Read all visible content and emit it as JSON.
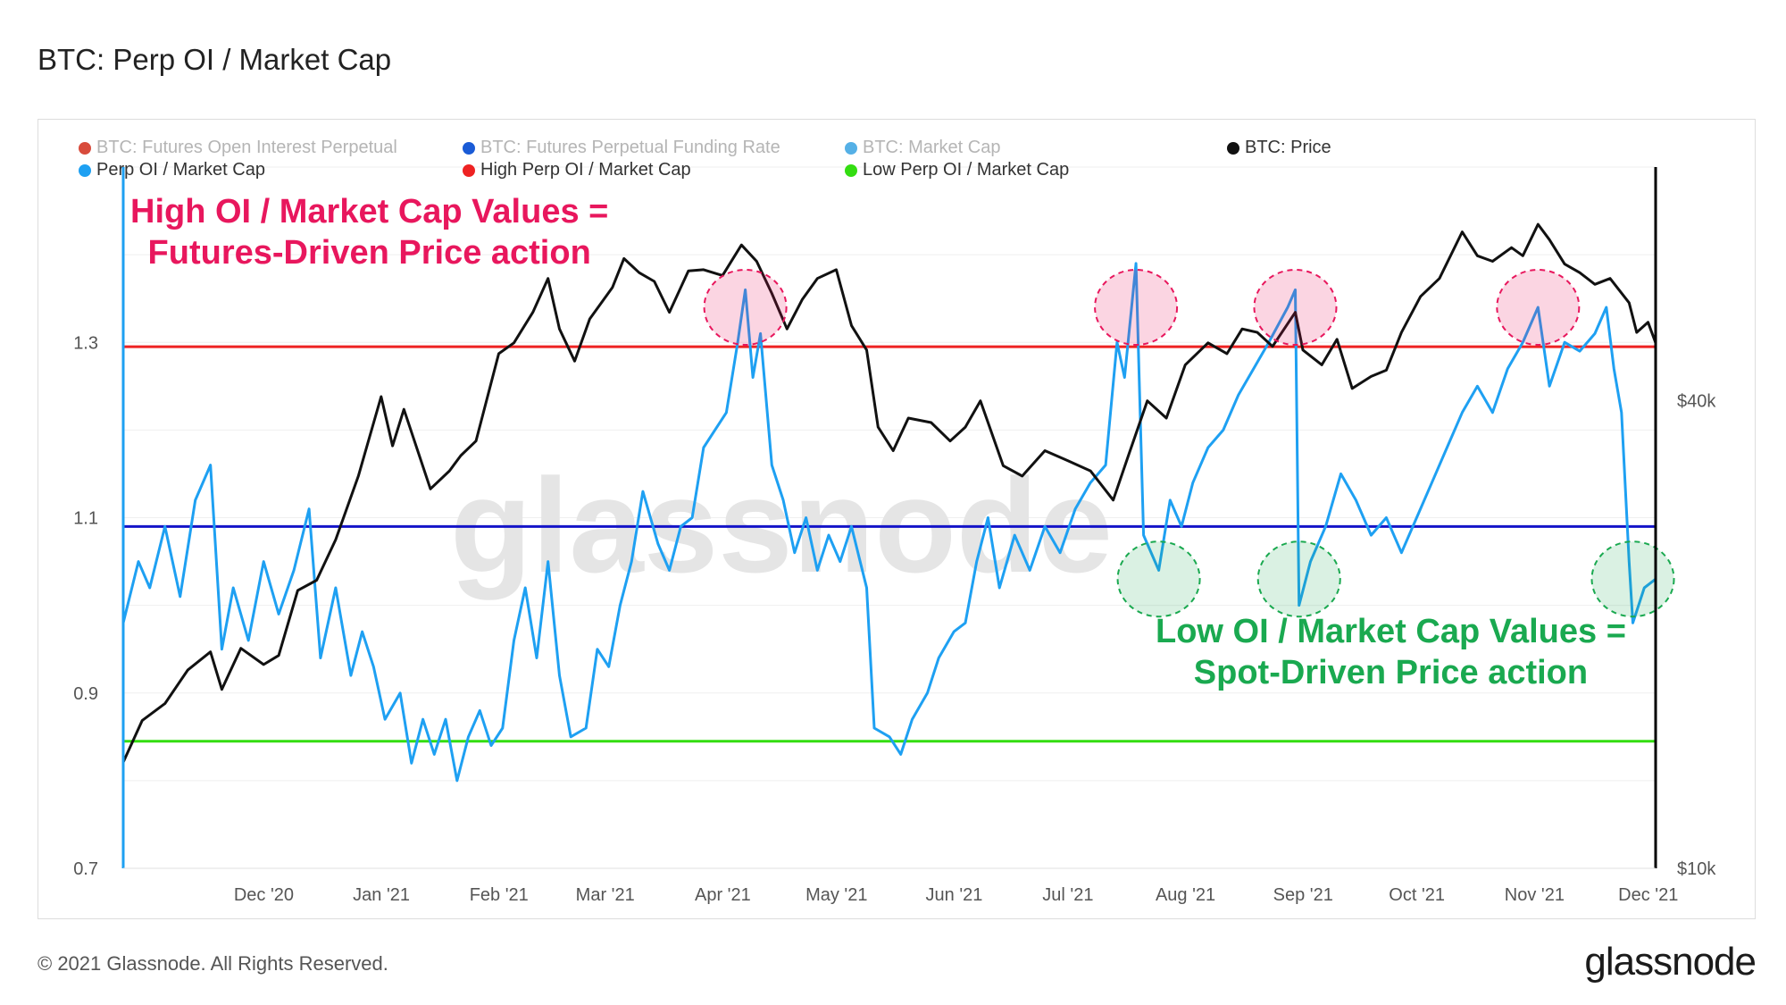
{
  "title": "BTC: Perp OI / Market Cap",
  "legend": [
    {
      "label": "BTC: Futures Open Interest Perpetual",
      "color": "#d84b3c",
      "muted": true
    },
    {
      "label": "BTC: Futures Perpetual Funding Rate",
      "color": "#1a5bd6",
      "muted": true
    },
    {
      "label": "BTC: Market Cap",
      "color": "#55b0e6",
      "muted": true
    },
    {
      "label": "BTC: Price",
      "color": "#111111",
      "muted": false
    },
    {
      "label": "Perp OI / Market Cap",
      "color": "#1ea0f2",
      "muted": false
    },
    {
      "label": "High Perp OI / Market Cap",
      "color": "#ee2222",
      "muted": false
    },
    {
      "label": "Low Perp OI / Market Cap",
      "color": "#33dd11",
      "muted": false
    }
  ],
  "annotations": {
    "high_line1": "High OI / Market Cap Values =",
    "high_line2": "Futures-Driven Price action",
    "low_line1": "Low OI / Market Cap Values =",
    "low_line2": "Spot-Driven Price action"
  },
  "watermark": "glassnode",
  "footer": {
    "copyright": "© 2021 Glassnode. All Rights Reserved.",
    "logo": "glassnode"
  },
  "colors": {
    "ratio": "#1ea0f2",
    "price": "#111111",
    "high": "#ee2222",
    "funding": "#1414c8",
    "low": "#33dd11",
    "high_circle": "#e8175d",
    "low_circle": "#1aa950"
  },
  "chart_data": {
    "type": "line",
    "x_range": [
      "2020-11-01",
      "2021-12-10"
    ],
    "x_ticks": [
      "Dec '20",
      "Jan '21",
      "Feb '21",
      "Mar '21",
      "Apr '21",
      "May '21",
      "Jun '21",
      "Jul '21",
      "Aug '21",
      "Sep '21",
      "Oct '21",
      "Nov '21",
      "Dec '21"
    ],
    "y_left": {
      "min": 0.7,
      "max": 1.5,
      "ticks": [
        "0.7",
        "0.9",
        "1.1",
        "1.3"
      ]
    },
    "y_right": {
      "scale": "log",
      "min": 10000,
      "max": 80000,
      "ticks": [
        "$10k",
        "$40k"
      ]
    },
    "horizontal_lines": [
      {
        "name": "High Perp OI / Market Cap",
        "value": 1.295
      },
      {
        "name": "BTC: Futures Perpetual Funding Rate",
        "value": 1.09
      },
      {
        "name": "Low Perp OI / Market Cap",
        "value": 0.845
      }
    ],
    "series": [
      {
        "name": "Perp OI / Market Cap",
        "axis": "left",
        "points": [
          [
            "2020-11-01",
            0.98
          ],
          [
            "2020-11-05",
            1.05
          ],
          [
            "2020-11-08",
            1.02
          ],
          [
            "2020-11-12",
            1.09
          ],
          [
            "2020-11-16",
            1.01
          ],
          [
            "2020-11-20",
            1.12
          ],
          [
            "2020-11-24",
            1.16
          ],
          [
            "2020-11-27",
            0.95
          ],
          [
            "2020-11-30",
            1.02
          ],
          [
            "2020-12-04",
            0.96
          ],
          [
            "2020-12-08",
            1.05
          ],
          [
            "2020-12-12",
            0.99
          ],
          [
            "2020-12-16",
            1.04
          ],
          [
            "2020-12-20",
            1.11
          ],
          [
            "2020-12-23",
            0.94
          ],
          [
            "2020-12-27",
            1.02
          ],
          [
            "2020-12-31",
            0.92
          ],
          [
            "2021-01-03",
            0.97
          ],
          [
            "2021-01-06",
            0.93
          ],
          [
            "2021-01-09",
            0.87
          ],
          [
            "2021-01-13",
            0.9
          ],
          [
            "2021-01-16",
            0.82
          ],
          [
            "2021-01-19",
            0.87
          ],
          [
            "2021-01-22",
            0.83
          ],
          [
            "2021-01-25",
            0.87
          ],
          [
            "2021-01-28",
            0.8
          ],
          [
            "2021-01-31",
            0.85
          ],
          [
            "2021-02-03",
            0.88
          ],
          [
            "2021-02-06",
            0.84
          ],
          [
            "2021-02-09",
            0.86
          ],
          [
            "2021-02-12",
            0.96
          ],
          [
            "2021-02-15",
            1.02
          ],
          [
            "2021-02-18",
            0.94
          ],
          [
            "2021-02-21",
            1.05
          ],
          [
            "2021-02-24",
            0.92
          ],
          [
            "2021-02-27",
            0.85
          ],
          [
            "2021-03-03",
            0.86
          ],
          [
            "2021-03-06",
            0.95
          ],
          [
            "2021-03-09",
            0.93
          ],
          [
            "2021-03-12",
            1.0
          ],
          [
            "2021-03-15",
            1.05
          ],
          [
            "2021-03-18",
            1.13
          ],
          [
            "2021-03-22",
            1.07
          ],
          [
            "2021-03-25",
            1.04
          ],
          [
            "2021-03-28",
            1.09
          ],
          [
            "2021-03-31",
            1.1
          ],
          [
            "2021-04-03",
            1.18
          ],
          [
            "2021-04-06",
            1.2
          ],
          [
            "2021-04-09",
            1.22
          ],
          [
            "2021-04-12",
            1.3
          ],
          [
            "2021-04-14",
            1.36
          ],
          [
            "2021-04-16",
            1.26
          ],
          [
            "2021-04-18",
            1.31
          ],
          [
            "2021-04-21",
            1.16
          ],
          [
            "2021-04-24",
            1.12
          ],
          [
            "2021-04-27",
            1.06
          ],
          [
            "2021-04-30",
            1.1
          ],
          [
            "2021-05-03",
            1.04
          ],
          [
            "2021-05-06",
            1.08
          ],
          [
            "2021-05-09",
            1.05
          ],
          [
            "2021-05-12",
            1.09
          ],
          [
            "2021-05-16",
            1.02
          ],
          [
            "2021-05-18",
            0.86
          ],
          [
            "2021-05-22",
            0.85
          ],
          [
            "2021-05-25",
            0.83
          ],
          [
            "2021-05-28",
            0.87
          ],
          [
            "2021-06-01",
            0.9
          ],
          [
            "2021-06-04",
            0.94
          ],
          [
            "2021-06-08",
            0.97
          ],
          [
            "2021-06-11",
            0.98
          ],
          [
            "2021-06-14",
            1.05
          ],
          [
            "2021-06-17",
            1.1
          ],
          [
            "2021-06-20",
            1.02
          ],
          [
            "2021-06-24",
            1.08
          ],
          [
            "2021-06-28",
            1.04
          ],
          [
            "2021-07-02",
            1.09
          ],
          [
            "2021-07-06",
            1.06
          ],
          [
            "2021-07-10",
            1.11
          ],
          [
            "2021-07-14",
            1.14
          ],
          [
            "2021-07-18",
            1.16
          ],
          [
            "2021-07-21",
            1.3
          ],
          [
            "2021-07-23",
            1.26
          ],
          [
            "2021-07-26",
            1.39
          ],
          [
            "2021-07-28",
            1.08
          ],
          [
            "2021-08-01",
            1.04
          ],
          [
            "2021-08-04",
            1.12
          ],
          [
            "2021-08-07",
            1.09
          ],
          [
            "2021-08-10",
            1.14
          ],
          [
            "2021-08-14",
            1.18
          ],
          [
            "2021-08-18",
            1.2
          ],
          [
            "2021-08-22",
            1.24
          ],
          [
            "2021-08-26",
            1.27
          ],
          [
            "2021-08-30",
            1.3
          ],
          [
            "2021-09-04",
            1.34
          ],
          [
            "2021-09-06",
            1.36
          ],
          [
            "2021-09-07",
            1.0
          ],
          [
            "2021-09-10",
            1.05
          ],
          [
            "2021-09-14",
            1.09
          ],
          [
            "2021-09-18",
            1.15
          ],
          [
            "2021-09-22",
            1.12
          ],
          [
            "2021-09-26",
            1.08
          ],
          [
            "2021-09-30",
            1.1
          ],
          [
            "2021-10-04",
            1.06
          ],
          [
            "2021-10-08",
            1.1
          ],
          [
            "2021-10-12",
            1.14
          ],
          [
            "2021-10-16",
            1.18
          ],
          [
            "2021-10-20",
            1.22
          ],
          [
            "2021-10-24",
            1.25
          ],
          [
            "2021-10-28",
            1.22
          ],
          [
            "2021-11-01",
            1.27
          ],
          [
            "2021-11-05",
            1.3
          ],
          [
            "2021-11-09",
            1.34
          ],
          [
            "2021-11-12",
            1.25
          ],
          [
            "2021-11-16",
            1.3
          ],
          [
            "2021-11-20",
            1.29
          ],
          [
            "2021-11-24",
            1.31
          ],
          [
            "2021-11-27",
            1.34
          ],
          [
            "2021-11-29",
            1.27
          ],
          [
            "2021-12-01",
            1.22
          ],
          [
            "2021-12-03",
            1.05
          ],
          [
            "2021-12-04",
            0.98
          ],
          [
            "2021-12-07",
            1.02
          ],
          [
            "2021-12-10",
            1.03
          ]
        ]
      },
      {
        "name": "BTC: Price",
        "axis": "right",
        "points": [
          [
            "2020-11-01",
            13700
          ],
          [
            "2020-11-06",
            15500
          ],
          [
            "2020-11-12",
            16300
          ],
          [
            "2020-11-18",
            18000
          ],
          [
            "2020-11-24",
            19000
          ],
          [
            "2020-11-27",
            17000
          ],
          [
            "2020-12-02",
            19200
          ],
          [
            "2020-12-08",
            18300
          ],
          [
            "2020-12-12",
            18800
          ],
          [
            "2020-12-17",
            22800
          ],
          [
            "2020-12-22",
            23500
          ],
          [
            "2020-12-27",
            26500
          ],
          [
            "2021-01-02",
            32000
          ],
          [
            "2021-01-08",
            40500
          ],
          [
            "2021-01-11",
            35000
          ],
          [
            "2021-01-14",
            39000
          ],
          [
            "2021-01-21",
            30800
          ],
          [
            "2021-01-26",
            32500
          ],
          [
            "2021-01-29",
            34000
          ],
          [
            "2021-02-02",
            35500
          ],
          [
            "2021-02-08",
            46000
          ],
          [
            "2021-02-12",
            47500
          ],
          [
            "2021-02-17",
            52000
          ],
          [
            "2021-02-21",
            57500
          ],
          [
            "2021-02-24",
            49500
          ],
          [
            "2021-02-28",
            45000
          ],
          [
            "2021-03-04",
            51000
          ],
          [
            "2021-03-10",
            56000
          ],
          [
            "2021-03-13",
            61000
          ],
          [
            "2021-03-17",
            58500
          ],
          [
            "2021-03-21",
            57000
          ],
          [
            "2021-03-25",
            52000
          ],
          [
            "2021-03-30",
            58800
          ],
          [
            "2021-04-03",
            59000
          ],
          [
            "2021-04-08",
            58000
          ],
          [
            "2021-04-13",
            63500
          ],
          [
            "2021-04-17",
            60500
          ],
          [
            "2021-04-21",
            55000
          ],
          [
            "2021-04-25",
            49500
          ],
          [
            "2021-04-29",
            54000
          ],
          [
            "2021-05-03",
            57500
          ],
          [
            "2021-05-08",
            59000
          ],
          [
            "2021-05-12",
            50000
          ],
          [
            "2021-05-16",
            46500
          ],
          [
            "2021-05-19",
            37000
          ],
          [
            "2021-05-23",
            34500
          ],
          [
            "2021-05-27",
            38000
          ],
          [
            "2021-06-02",
            37500
          ],
          [
            "2021-06-07",
            35500
          ],
          [
            "2021-06-11",
            37000
          ],
          [
            "2021-06-15",
            40000
          ],
          [
            "2021-06-21",
            33000
          ],
          [
            "2021-06-26",
            32000
          ],
          [
            "2021-07-02",
            34500
          ],
          [
            "2021-07-08",
            33500
          ],
          [
            "2021-07-14",
            32500
          ],
          [
            "2021-07-20",
            29800
          ],
          [
            "2021-07-24",
            34000
          ],
          [
            "2021-07-29",
            40000
          ],
          [
            "2021-08-03",
            38000
          ],
          [
            "2021-08-08",
            44500
          ],
          [
            "2021-08-14",
            47500
          ],
          [
            "2021-08-19",
            46000
          ],
          [
            "2021-08-23",
            49500
          ],
          [
            "2021-08-27",
            49000
          ],
          [
            "2021-08-31",
            47000
          ],
          [
            "2021-09-06",
            52000
          ],
          [
            "2021-09-08",
            46500
          ],
          [
            "2021-09-13",
            44500
          ],
          [
            "2021-09-17",
            48000
          ],
          [
            "2021-09-21",
            41500
          ],
          [
            "2021-09-26",
            43000
          ],
          [
            "2021-09-30",
            43800
          ],
          [
            "2021-10-04",
            49000
          ],
          [
            "2021-10-09",
            54500
          ],
          [
            "2021-10-14",
            57500
          ],
          [
            "2021-10-20",
            66000
          ],
          [
            "2021-10-24",
            61500
          ],
          [
            "2021-10-28",
            60500
          ],
          [
            "2021-11-02",
            63000
          ],
          [
            "2021-11-05",
            61500
          ],
          [
            "2021-11-09",
            67500
          ],
          [
            "2021-11-12",
            64500
          ],
          [
            "2021-11-16",
            60000
          ],
          [
            "2021-11-20",
            58500
          ],
          [
            "2021-11-24",
            56500
          ],
          [
            "2021-11-28",
            57500
          ],
          [
            "2021-12-03",
            53500
          ],
          [
            "2021-12-05",
            49000
          ],
          [
            "2021-12-08",
            50500
          ],
          [
            "2021-12-10",
            47500
          ]
        ]
      }
    ],
    "highlight_circles": [
      {
        "kind": "high",
        "date": "2021-04-14",
        "value": 1.34
      },
      {
        "kind": "high",
        "date": "2021-07-26",
        "value": 1.34
      },
      {
        "kind": "high",
        "date": "2021-09-06",
        "value": 1.34
      },
      {
        "kind": "high",
        "date": "2021-11-09",
        "value": 1.34
      },
      {
        "kind": "low",
        "date": "2021-08-01",
        "value": 1.03
      },
      {
        "kind": "low",
        "date": "2021-09-07",
        "value": 1.03
      },
      {
        "kind": "low",
        "date": "2021-12-04",
        "value": 1.03
      }
    ]
  }
}
